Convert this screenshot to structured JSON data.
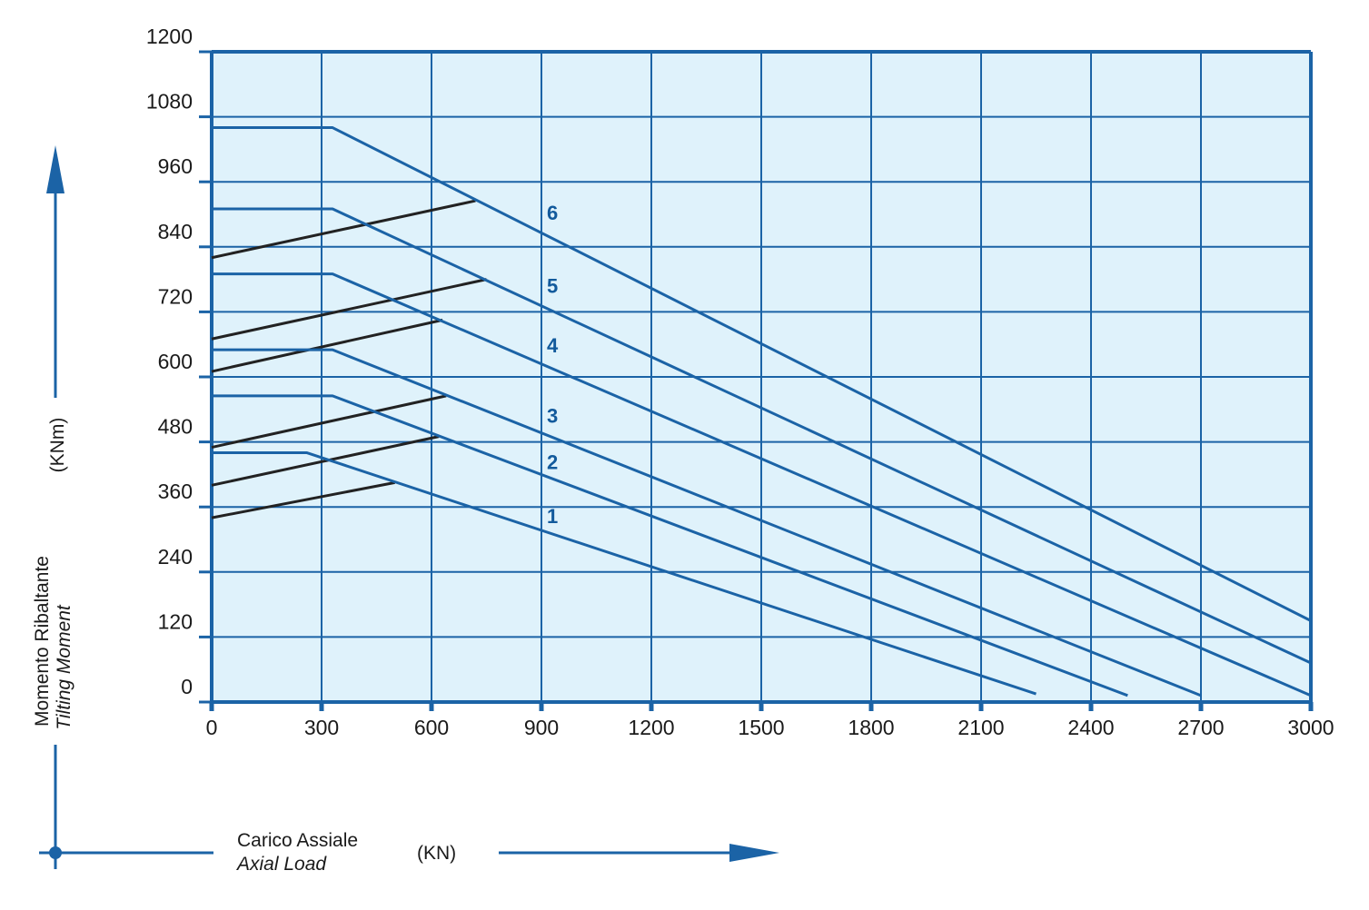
{
  "chart_data": {
    "type": "line",
    "xlabel": "Carico Assiale",
    "xlabel_en": "Axial Load",
    "xunit": "(KN)",
    "ylabel": "Momento Ribaltante",
    "ylabel_en": "Tilting Moment",
    "yunit": "(KNm)",
    "xlim": [
      0,
      3000
    ],
    "ylim": [
      0,
      1200
    ],
    "x_ticks": [
      0,
      300,
      600,
      900,
      1200,
      1500,
      1800,
      2100,
      2400,
      2700,
      3000
    ],
    "y_ticks": [
      0,
      120,
      240,
      360,
      480,
      600,
      720,
      840,
      960,
      1080,
      1200
    ],
    "grid": true,
    "colors": {
      "plot_bg": "#dff2fb",
      "grid": "#1b63a6",
      "series_line": "#1b63a6",
      "bolt_line": "#222222",
      "label": "#125a9c"
    },
    "series": [
      {
        "name": "1",
        "x": [
          0,
          260,
          2250
        ],
        "y": [
          460,
          460,
          15
        ],
        "label_x": 930,
        "label_y": 330
      },
      {
        "name": "2",
        "x": [
          0,
          330,
          2500
        ],
        "y": [
          565,
          565,
          12
        ],
        "label_x": 930,
        "label_y": 430
      },
      {
        "name": "3",
        "x": [
          0,
          330,
          2700
        ],
        "y": [
          650,
          650,
          12
        ],
        "label_x": 930,
        "label_y": 515
      },
      {
        "name": "4",
        "x": [
          0,
          330,
          3000
        ],
        "y": [
          790,
          790,
          12
        ],
        "label_x": 930,
        "label_y": 645
      },
      {
        "name": "5",
        "x": [
          0,
          330,
          3000
        ],
        "y": [
          910,
          910,
          72
        ],
        "label_x": 930,
        "label_y": 755
      },
      {
        "name": "6",
        "x": [
          0,
          330,
          3000
        ],
        "y": [
          1060,
          1060,
          150
        ],
        "label_x": 930,
        "label_y": 890
      }
    ],
    "bolt_limit_lines": [
      {
        "x": [
          0,
          500
        ],
        "y": [
          340,
          405
        ]
      },
      {
        "x": [
          0,
          620
        ],
        "y": [
          400,
          490
        ]
      },
      {
        "x": [
          0,
          640
        ],
        "y": [
          470,
          565
        ]
      },
      {
        "x": [
          0,
          630
        ],
        "y": [
          610,
          705
        ]
      },
      {
        "x": [
          0,
          750
        ],
        "y": [
          670,
          780
        ]
      },
      {
        "x": [
          0,
          720
        ],
        "y": [
          820,
          925
        ]
      }
    ]
  }
}
